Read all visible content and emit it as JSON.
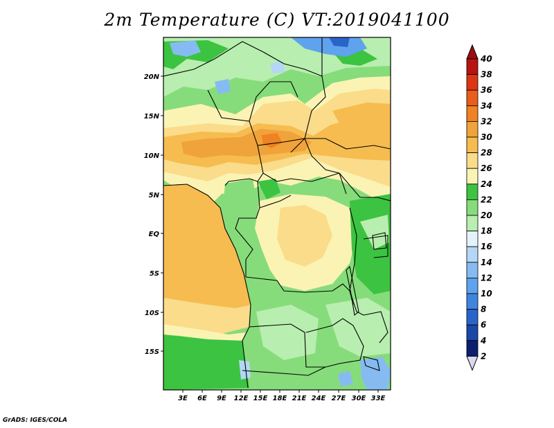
{
  "title": "2m Temperature (C) VT:2019041100",
  "credit": "GrADS: IGES/COLA",
  "map": {
    "lat_labels": [
      "20N",
      "15N",
      "10N",
      "5N",
      "EQ",
      "5S",
      "10S",
      "15S"
    ],
    "lon_labels": [
      "3E",
      "6E",
      "9E",
      "12E",
      "15E",
      "18E",
      "21E",
      "24E",
      "27E",
      "30E",
      "33E"
    ]
  },
  "colorbar": {
    "levels": [
      "40",
      "38",
      "36",
      "34",
      "32",
      "30",
      "28",
      "26",
      "24",
      "22",
      "20",
      "18",
      "16",
      "14",
      "12",
      "10",
      "8",
      "6",
      "4",
      "2"
    ],
    "colors": {
      "c2_4": "#0c1e6e",
      "c4_6": "#1a47a8",
      "c6_8": "#2a64c8",
      "c8_10": "#3f85e0",
      "c10_12": "#5fa2ee",
      "c12_14": "#86bbf2",
      "c14_16": "#b4d7f7",
      "c16_18": "#e4f3fb",
      "c18_20": "#b8eeaf",
      "c20_22": "#86dc7a",
      "c22_24": "#3cc341",
      "c24_26": "#fbf3b4",
      "c26_28": "#fadc8a",
      "c28_30": "#f6bc50",
      "c30_32": "#f0a33a",
      "c32_34": "#ef8222",
      "c34_36": "#e85d19",
      "c36_38": "#dd3514",
      "c38_40": "#b81410",
      "over": "#9a0e12",
      "under": "#dcd8f2"
    }
  }
}
